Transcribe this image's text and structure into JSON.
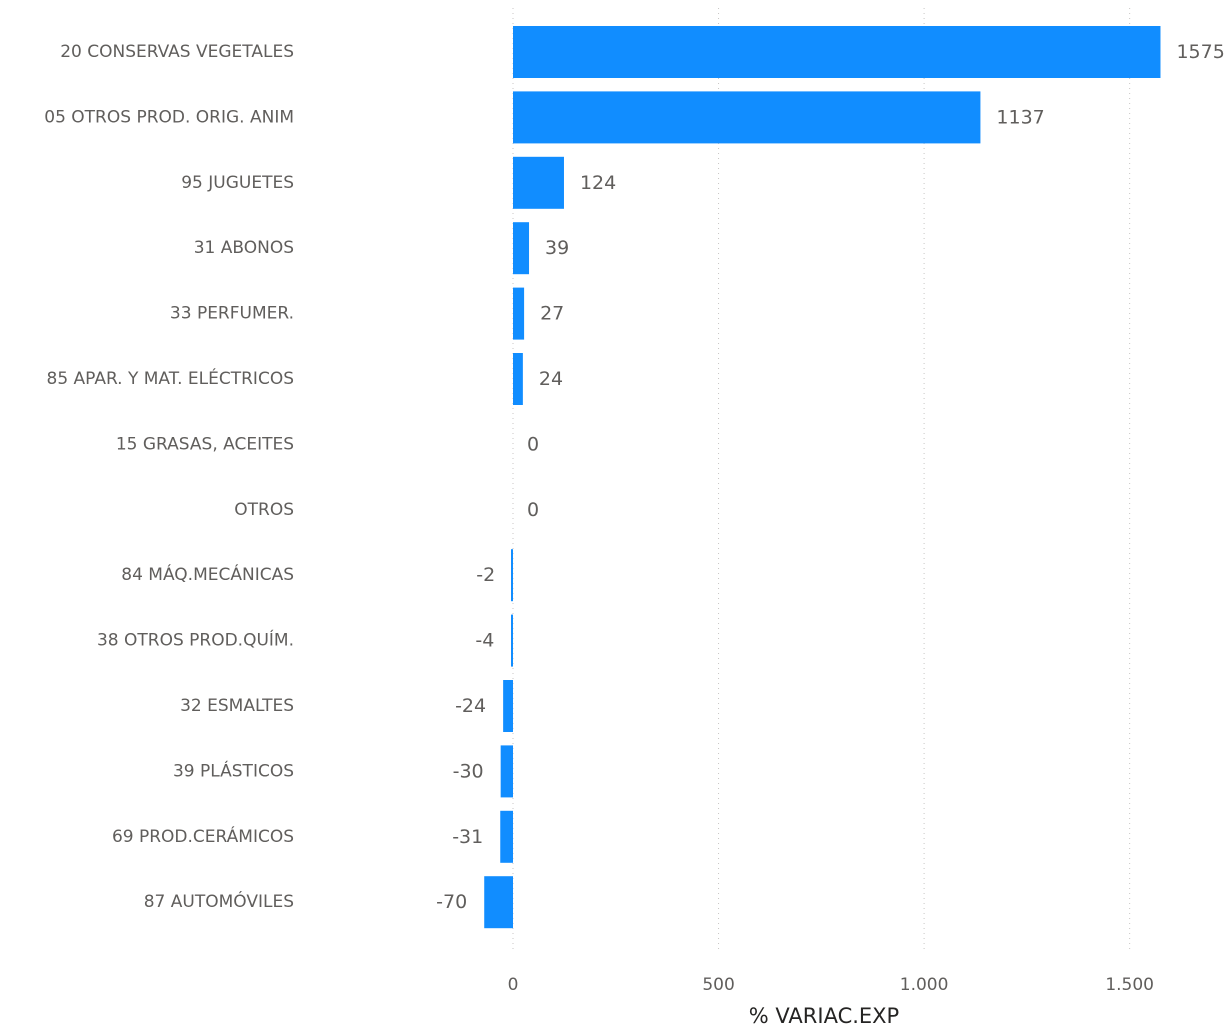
{
  "chart_data": {
    "type": "bar",
    "orientation": "horizontal",
    "categories": [
      "20 CONSERVAS VEGETALES",
      "05 OTROS PROD. ORIG. ANIM",
      "95 JUGUETES",
      "31 ABONOS",
      "33 PERFUMER.",
      "85 APAR. Y MAT. ELÉCTRICOS",
      "15 GRASAS, ACEITES",
      "OTROS",
      "84 MÁQ.MECÁNICAS",
      "38 OTROS PROD.QUÍM.",
      "32 ESMALTES",
      "39 PLÁSTICOS",
      "69 PROD.CERÁMICOS",
      "87 AUTOMÓVILES"
    ],
    "values": [
      1575,
      1137,
      124,
      39,
      27,
      24,
      0,
      0,
      -2,
      -4,
      -24,
      -30,
      -31,
      -70
    ],
    "value_labels": [
      "1575",
      "1137",
      "124",
      "39",
      "27",
      "24",
      "0",
      "0",
      "-2",
      "-4",
      "-24",
      "-30",
      "-31",
      "-70"
    ],
    "xlabel": "% VARIAC.EXP",
    "ylabel": "",
    "xlim": [
      -70,
      1575
    ],
    "xticks": [
      0,
      500,
      1000,
      1500
    ],
    "xtick_labels": [
      "0",
      "500",
      "1.000",
      "1.500"
    ],
    "grid": "vertical dotted",
    "bar_color": "#118dff"
  }
}
